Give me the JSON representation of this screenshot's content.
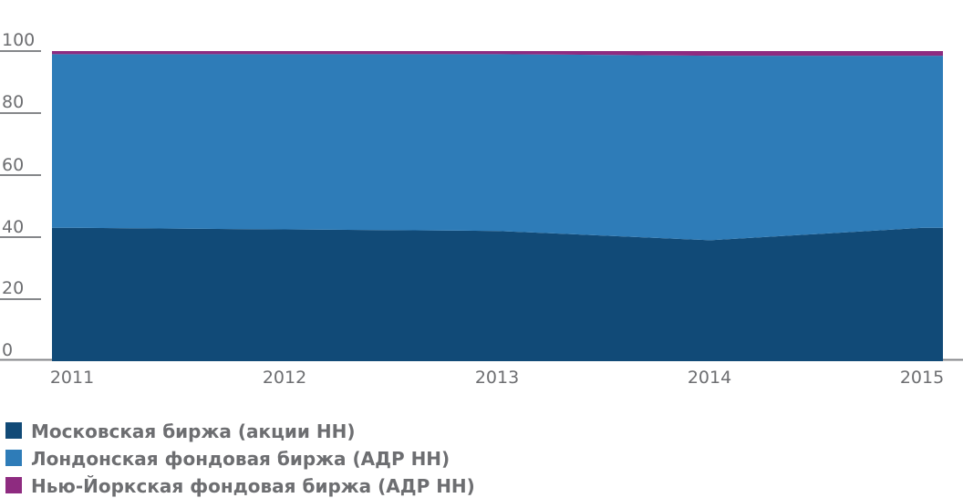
{
  "chart_data": {
    "type": "area",
    "stacked": true,
    "stacked_to_100_percent": true,
    "x": [
      "2011",
      "2012",
      "2013",
      "2014",
      "2015"
    ],
    "series": [
      {
        "name": "Московская биржа (акции НН)",
        "color": "#114a77",
        "values": [
          43,
          42.5,
          42,
          39,
          43
        ]
      },
      {
        "name": "Лондонская фондовая биржа (АДР НН)",
        "color": "#2e7cb8",
        "values": [
          56,
          56.5,
          57,
          59.5,
          55.5
        ]
      },
      {
        "name": "Нью-Йоркская фондовая биржа (АДР НН)",
        "color": "#8e2b80",
        "values": [
          1,
          1,
          1,
          1.5,
          1.5
        ]
      }
    ],
    "title": "",
    "xlabel": "",
    "ylabel": "",
    "ylim": [
      0,
      100
    ],
    "yticks": [
      100,
      80,
      60,
      40,
      20,
      0
    ],
    "grid": "left-tick-dashes-only",
    "legend_position": "bottom-left",
    "axis_line_color": "#85878a",
    "label_color": "#6d6e71",
    "background_color": "#ffffff"
  }
}
